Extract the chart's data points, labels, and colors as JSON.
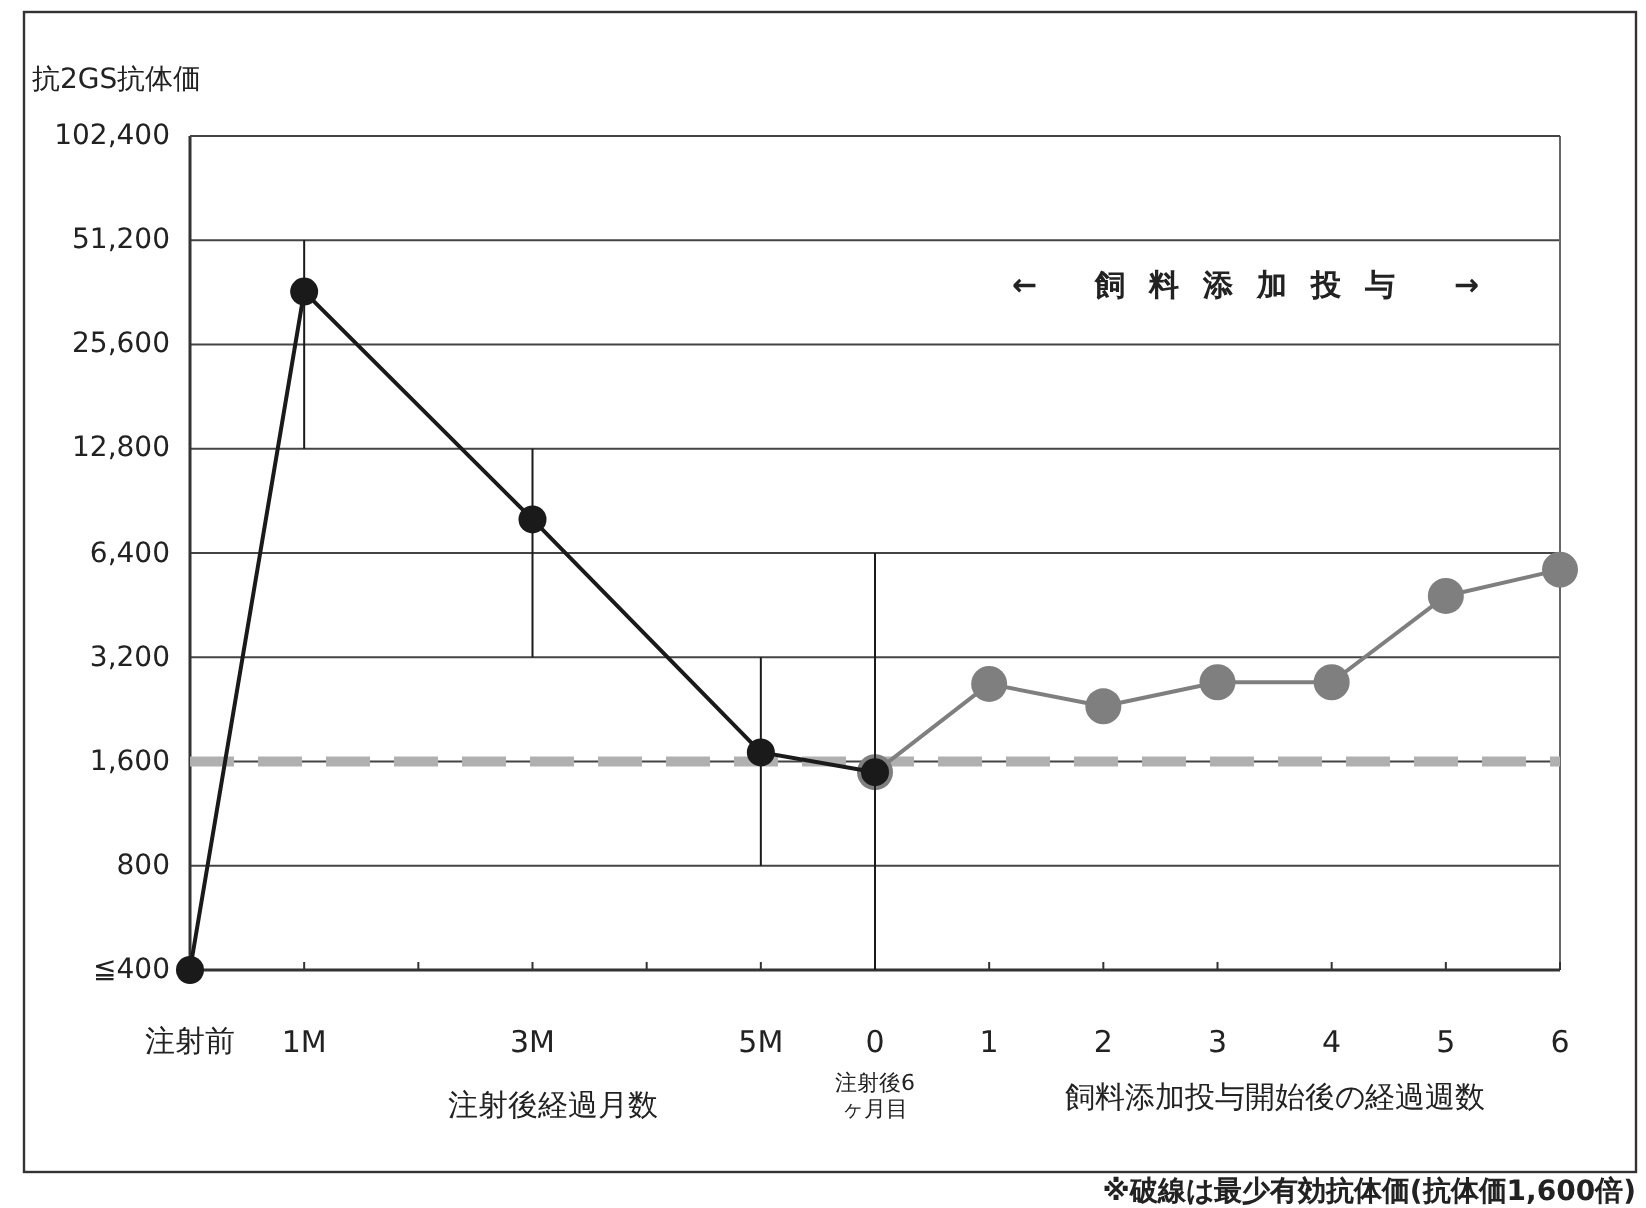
{
  "chart_data": {
    "type": "line",
    "ylabel": "抗2GS抗体価",
    "xlabel": "注射後経過月数",
    "categories": [
      "注射前",
      "1M",
      null,
      "3M",
      null,
      "5M",
      "0",
      "1",
      "2",
      "3",
      "4",
      "5",
      "6"
    ],
    "ylim": [
      400,
      102400
    ],
    "yticks": [
      {
        "value": 400,
        "label": "≦400"
      },
      {
        "value": 800,
        "label": "800"
      },
      {
        "value": 1600,
        "label": "1,600"
      },
      {
        "value": 3200,
        "label": "3,200"
      },
      {
        "value": 6400,
        "label": "6,400"
      },
      {
        "value": 12800,
        "label": "12,800"
      },
      {
        "value": 25600,
        "label": "25,600"
      },
      {
        "value": 51200,
        "label": "51,200"
      },
      {
        "value": 102400,
        "label": "102,400"
      }
    ],
    "log": true,
    "grid": "y",
    "marker": "circle",
    "series": [
      {
        "color": "#1a1a1a",
        "values": [
          400,
          36400,
          null,
          8000,
          null,
          1700,
          1490,
          null,
          null,
          null,
          null,
          null,
          null
        ],
        "errors": [
          null,
          [
            12800,
            51200
          ],
          null,
          [
            3200,
            12800
          ],
          null,
          [
            800,
            3200
          ],
          [
            400,
            6400
          ],
          null,
          null,
          null,
          null,
          null,
          null
        ]
      },
      {
        "color": "#7f7f7f",
        "values": [
          null,
          null,
          null,
          null,
          null,
          null,
          1490,
          2680,
          2310,
          2710,
          2710,
          4810,
          5730
        ]
      }
    ],
    "ref_lines": [
      {
        "axis": "y",
        "value": 1600,
        "color": "#b0b0b0",
        "line_style": "dashed"
      }
    ],
    "annotations": [
      "← 飼料添加投与 →",
      "注射後6ヶ月目",
      "飼料添加投与開始後の経過週数",
      "※破線は最少有効抗体価(抗体価1,600倍)"
    ]
  }
}
